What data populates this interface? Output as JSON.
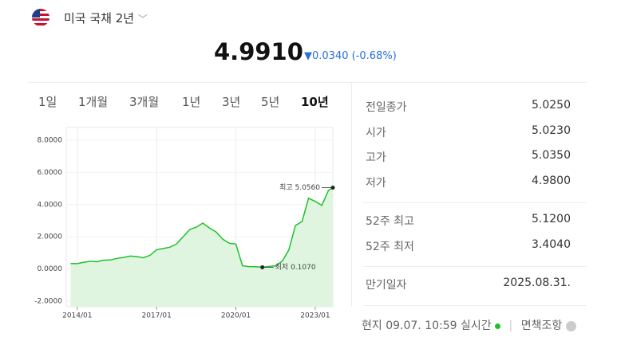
{
  "header": {
    "name": "미국 국채 2년",
    "price": "4.9910",
    "change": "▼0.0340",
    "change_pct": "(-0.68%)"
  },
  "tabs": [
    "1일",
    "1개월",
    "3개월",
    "1년",
    "3년",
    "5년",
    "10년"
  ],
  "active_tab": 6,
  "stats": [
    [
      {
        "label": "전일종가",
        "value": "5.0250"
      },
      {
        "label": "시가",
        "value": "5.0230"
      },
      {
        "label": "고가",
        "value": "5.0350"
      },
      {
        "label": "저가",
        "value": "4.9800"
      }
    ],
    [
      {
        "label": "52주 최고",
        "value": "5.1200"
      },
      {
        "label": "52주 최저",
        "value": "3.4040"
      }
    ],
    [
      {
        "label": "만기일자",
        "value": "2025.08.31."
      }
    ]
  ],
  "footer": {
    "status": "현지 09.07. 10:59 실시간",
    "disclaimer": "면책조항"
  },
  "chart_data": {
    "type": "line",
    "x": [
      "2013/10",
      "2014/01",
      "2014/04",
      "2014/07",
      "2014/10",
      "2015/01",
      "2015/04",
      "2015/07",
      "2015/10",
      "2016/01",
      "2016/04",
      "2016/07",
      "2016/10",
      "2017/01",
      "2017/04",
      "2017/07",
      "2017/10",
      "2018/01",
      "2018/04",
      "2018/07",
      "2018/10",
      "2019/01",
      "2019/04",
      "2019/07",
      "2019/10",
      "2020/01",
      "2020/04",
      "2020/07",
      "2020/10",
      "2021/01",
      "2021/04",
      "2021/07",
      "2021/10",
      "2022/01",
      "2022/04",
      "2022/07",
      "2022/10",
      "2023/01",
      "2023/04",
      "2023/07",
      "2023/09"
    ],
    "series": [
      {
        "color": "#1fc12a",
        "values": [
          0.34,
          0.33,
          0.42,
          0.48,
          0.45,
          0.55,
          0.56,
          0.66,
          0.72,
          0.8,
          0.77,
          0.7,
          0.85,
          1.2,
          1.27,
          1.35,
          1.55,
          2.0,
          2.45,
          2.6,
          2.85,
          2.55,
          2.3,
          1.85,
          1.6,
          1.55,
          0.2,
          0.15,
          0.14,
          0.107,
          0.16,
          0.2,
          0.48,
          1.18,
          2.7,
          2.95,
          4.4,
          4.2,
          3.95,
          4.88,
          5.056
        ]
      }
    ],
    "annotations": {
      "max": "최고 5.0560",
      "min": "최저 0.1070"
    },
    "xlim": [
      "2013/08",
      "2023/09"
    ],
    "xticks": [
      "2014/01",
      "2017/01",
      "2020/01",
      "2023/01"
    ],
    "ylim": [
      -2,
      8
    ],
    "yticks": [
      {
        "value": -2,
        "label": "-2.0000"
      },
      {
        "value": 0,
        "label": "0.0000"
      },
      {
        "value": 2,
        "label": "2.0000"
      },
      {
        "value": 4,
        "label": "4.0000"
      },
      {
        "value": 6,
        "label": "6.0000"
      },
      {
        "value": 8,
        "label": "8.0000"
      }
    ],
    "grid": true
  }
}
